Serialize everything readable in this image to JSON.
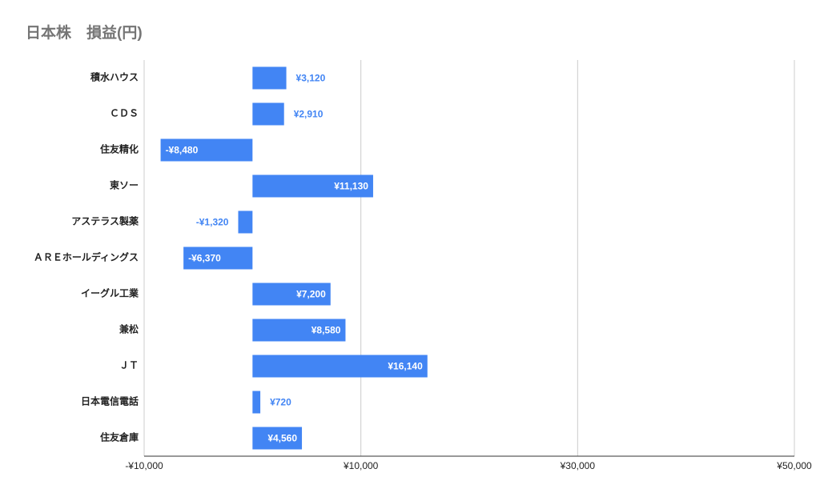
{
  "chart_data": {
    "type": "bar",
    "orientation": "horizontal",
    "title": "日本株　損益(円)",
    "categories": [
      "積水ハウス",
      "ＣＤＳ",
      "住友精化",
      "東ソー",
      "アステラス製薬",
      "ＡＲＥホールディングス",
      "イーグル工業",
      "兼松",
      "ＪＴ",
      "日本電信電話",
      "住友倉庫"
    ],
    "values": [
      3120,
      2910,
      -8480,
      11130,
      -1320,
      -6370,
      7200,
      8580,
      16140,
      720,
      4560
    ],
    "value_labels": [
      "¥3,120",
      "¥2,910",
      "-¥8,480",
      "¥11,130",
      "-¥1,320",
      "-¥6,370",
      "¥7,200",
      "¥8,580",
      "¥16,140",
      "¥720",
      "¥4,560"
    ],
    "color": "#4285f4",
    "xlim": [
      -10000,
      50000
    ],
    "xticks": [
      {
        "value": -10000,
        "label": "-¥10,000"
      },
      {
        "value": 10000,
        "label": "¥10,000"
      },
      {
        "value": 30000,
        "label": "¥30,000"
      },
      {
        "value": 50000,
        "label": "¥50,000"
      }
    ],
    "grid": true
  }
}
